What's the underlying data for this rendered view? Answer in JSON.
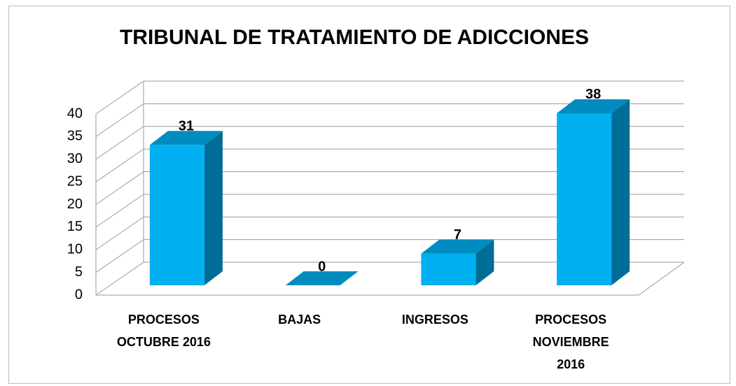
{
  "chart_data": {
    "type": "bar3d",
    "title": "TRIBUNAL DE TRATAMIENTO DE ADICCIONES",
    "categories": [
      "PROCESOS OCTUBRE 2016",
      "BAJAS",
      "INGRESOS",
      "PROCESOS NOVIEMBRE 2016"
    ],
    "values": [
      31,
      0,
      7,
      38
    ],
    "color": "#00b0f0",
    "ylim": [
      0,
      40
    ],
    "yticks": [
      0,
      5,
      10,
      15,
      20,
      25,
      30,
      35,
      40
    ],
    "grid": true
  }
}
